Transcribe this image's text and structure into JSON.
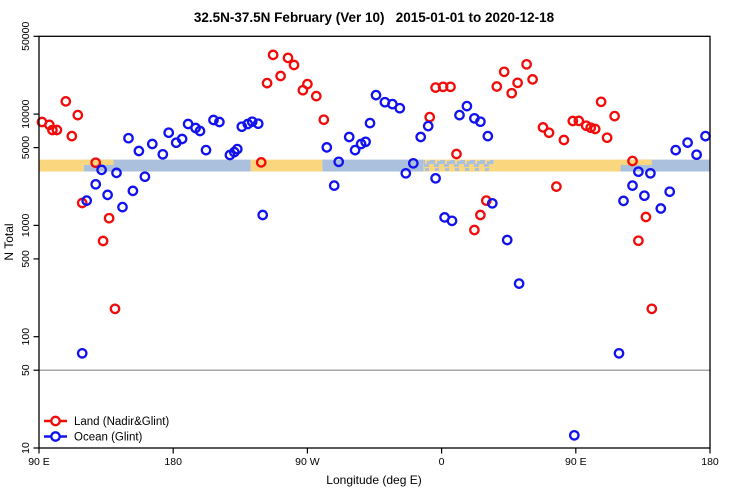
{
  "chart_data": {
    "type": "scatter",
    "title": "32.5N-37.5N February (Ver 10)   2015-01-01 to 2020-12-18",
    "xlabel": "Longitude (deg E)",
    "ylabel": "N Total",
    "y_scale": "log",
    "ylim": [
      10,
      50000
    ],
    "y_ticks": [
      {
        "value": 10,
        "label": "10"
      },
      {
        "value": 50,
        "label": "50"
      },
      {
        "value": 100,
        "label": "100"
      },
      {
        "value": 500,
        "label": "500"
      },
      {
        "value": 1000,
        "label": "1000"
      },
      {
        "value": 5000,
        "label": "5000"
      },
      {
        "value": 10000,
        "label": "10000"
      },
      {
        "value": 50000,
        "label": "50000"
      }
    ],
    "x_axis_note": "longitude axis starts at 90E and runs eastward 450 degrees",
    "x_span_degrees": 450,
    "x_ticks": [
      {
        "deg": 0,
        "label": "90 E"
      },
      {
        "deg": 90,
        "label": "180"
      },
      {
        "deg": 180,
        "label": "90 W"
      },
      {
        "deg": 270,
        "label": "0"
      },
      {
        "deg": 360,
        "label": "90 E"
      },
      {
        "deg": 450,
        "label": "180"
      }
    ],
    "reference_line": {
      "value": 50,
      "color": "#8a8a8a"
    },
    "map_band": {
      "value_top": 3900,
      "value_bottom": 3050,
      "land_color": "#FAD67F",
      "ocean_color": "#ABC0DC",
      "segments": [
        {
          "from": 0,
          "to": 30,
          "type": "land"
        },
        {
          "from": 30,
          "to": 50,
          "type": "mixed-top-land"
        },
        {
          "from": 50,
          "to": 142,
          "type": "ocean"
        },
        {
          "from": 142,
          "to": 190,
          "type": "land"
        },
        {
          "from": 190,
          "to": 258,
          "type": "ocean"
        },
        {
          "from": 258,
          "to": 305,
          "type": "mixed-mottle"
        },
        {
          "from": 305,
          "to": 390,
          "type": "land"
        },
        {
          "from": 390,
          "to": 411,
          "type": "mixed-top-land"
        },
        {
          "from": 411,
          "to": 450,
          "type": "ocean"
        }
      ]
    },
    "legend": {
      "position": "bottom-left"
    },
    "series": [
      {
        "name": "Land (Nadir&Glint)",
        "color": "#F10C0C",
        "points": [
          [
            2,
            8500
          ],
          [
            7,
            8000
          ],
          [
            9,
            7200
          ],
          [
            12,
            7200
          ],
          [
            18,
            13000
          ],
          [
            22,
            6350
          ],
          [
            26,
            9800
          ],
          [
            38,
            3660
          ],
          [
            29,
            1590
          ],
          [
            47,
            1160
          ],
          [
            43,
            724
          ],
          [
            51,
            178
          ],
          [
            149,
            3680
          ],
          [
            153,
            19000
          ],
          [
            157,
            34000
          ],
          [
            167,
            32000
          ],
          [
            171,
            27600
          ],
          [
            162,
            22000
          ],
          [
            177,
            16400
          ],
          [
            180,
            18600
          ],
          [
            186,
            14500
          ],
          [
            191,
            8900
          ],
          [
            262,
            9400
          ],
          [
            266,
            17300
          ],
          [
            271,
            17600
          ],
          [
            276,
            17600
          ],
          [
            280,
            4380
          ],
          [
            292,
            910
          ],
          [
            296,
            1240
          ],
          [
            300,
            1670
          ],
          [
            307,
            17700
          ],
          [
            312,
            24000
          ],
          [
            317,
            15400
          ],
          [
            321,
            19100
          ],
          [
            327,
            28000
          ],
          [
            331,
            20500
          ],
          [
            338,
            7600
          ],
          [
            342,
            6800
          ],
          [
            347,
            2230
          ],
          [
            352,
            5850
          ],
          [
            358,
            8670
          ],
          [
            362,
            8680
          ],
          [
            367,
            7870
          ],
          [
            370,
            7550
          ],
          [
            373,
            7350
          ],
          [
            377,
            12900
          ],
          [
            381,
            6140
          ],
          [
            386,
            9600
          ],
          [
            398,
            3790
          ],
          [
            407,
            1190
          ],
          [
            402,
            728
          ],
          [
            411,
            178
          ]
        ]
      },
      {
        "name": "Ocean (Glint)",
        "color": "#1212EE",
        "points": [
          [
            29,
            71
          ],
          [
            32,
            1670
          ],
          [
            38,
            2340
          ],
          [
            42,
            3150
          ],
          [
            46,
            1880
          ],
          [
            52,
            2960
          ],
          [
            56,
            1460
          ],
          [
            60,
            6070
          ],
          [
            63,
            2040
          ],
          [
            67,
            4660
          ],
          [
            71,
            2740
          ],
          [
            76,
            5390
          ],
          [
            83,
            4350
          ],
          [
            87,
            6800
          ],
          [
            92,
            5530
          ],
          [
            96,
            5970
          ],
          [
            100,
            8150
          ],
          [
            105,
            7500
          ],
          [
            108,
            7050
          ],
          [
            112,
            4750
          ],
          [
            117,
            8850
          ],
          [
            121,
            8500
          ],
          [
            128,
            4290
          ],
          [
            131,
            4560
          ],
          [
            133,
            4850
          ],
          [
            136,
            7700
          ],
          [
            140,
            8150
          ],
          [
            143,
            8550
          ],
          [
            147,
            8200
          ],
          [
            150,
            1240
          ],
          [
            193,
            5020
          ],
          [
            198,
            2280
          ],
          [
            201,
            3730
          ],
          [
            208,
            6230
          ],
          [
            212,
            4750
          ],
          [
            216,
            5390
          ],
          [
            219,
            5640
          ],
          [
            222,
            8300
          ],
          [
            226,
            14800
          ],
          [
            232,
            12800
          ],
          [
            237,
            12300
          ],
          [
            242,
            11300
          ],
          [
            246,
            2940
          ],
          [
            251,
            3610
          ],
          [
            256,
            6230
          ],
          [
            261,
            7800
          ],
          [
            266,
            2650
          ],
          [
            272,
            1180
          ],
          [
            277,
            1100
          ],
          [
            282,
            9800
          ],
          [
            287,
            11800
          ],
          [
            292,
            9160
          ],
          [
            296,
            8550
          ],
          [
            301,
            6350
          ],
          [
            304,
            1580
          ],
          [
            314,
            740
          ],
          [
            322,
            300
          ],
          [
            359,
            13
          ],
          [
            389,
            71
          ],
          [
            392,
            1660
          ],
          [
            398,
            2280
          ],
          [
            402,
            3040
          ],
          [
            406,
            1850
          ],
          [
            410,
            2940
          ],
          [
            417,
            1420
          ],
          [
            423,
            2010
          ],
          [
            427,
            4750
          ],
          [
            435,
            5540
          ],
          [
            441,
            4320
          ],
          [
            447,
            6350
          ]
        ]
      }
    ]
  }
}
